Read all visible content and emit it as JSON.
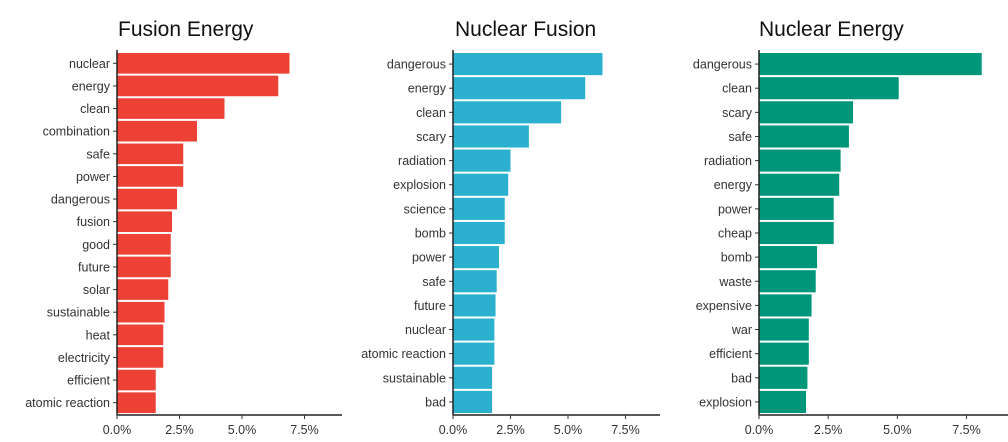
{
  "chart_data": [
    {
      "type": "bar",
      "orientation": "horizontal",
      "title": "Fusion Energy",
      "color": "#ee4136",
      "categories": [
        "nuclear",
        "energy",
        "clean",
        "combination",
        "safe",
        "power",
        "dangerous",
        "fusion",
        "good",
        "future",
        "solar",
        "sustainable",
        "heat",
        "electricity",
        "efficient",
        "atomic reaction"
      ],
      "values": [
        6.9,
        6.45,
        4.3,
        3.2,
        2.65,
        2.65,
        2.4,
        2.2,
        2.15,
        2.15,
        2.05,
        1.9,
        1.85,
        1.85,
        1.55,
        1.55
      ],
      "unit": "%",
      "xlim": [
        0,
        9
      ],
      "xticks": [
        "0.0%",
        "2.5%",
        "5.0%",
        "7.5%"
      ],
      "xtick_values": [
        0,
        2.5,
        5,
        7.5
      ],
      "grid": false
    },
    {
      "type": "bar",
      "orientation": "horizontal",
      "title": "Nuclear Fusion",
      "color": "#2bb1cf",
      "categories": [
        "dangerous",
        "energy",
        "clean",
        "scary",
        "radiation",
        "explosion",
        "science",
        "bomb",
        "power",
        "safe",
        "future",
        "nuclear",
        "atomic reaction",
        "sustainable",
        "bad"
      ],
      "values": [
        6.5,
        5.75,
        4.7,
        3.3,
        2.5,
        2.4,
        2.25,
        2.25,
        2.0,
        1.9,
        1.85,
        1.8,
        1.8,
        1.7,
        1.7
      ],
      "unit": "%",
      "xlim": [
        0,
        9
      ],
      "xticks": [
        "0.0%",
        "2.5%",
        "5.0%",
        "7.5%"
      ],
      "xtick_values": [
        0,
        2.5,
        5,
        7.5
      ],
      "grid": false
    },
    {
      "type": "bar",
      "orientation": "horizontal",
      "title": "Nuclear Energy",
      "color": "#00967a",
      "categories": [
        "dangerous",
        "clean",
        "scary",
        "safe",
        "radiation",
        "energy",
        "power",
        "cheap",
        "bomb",
        "waste",
        "expensive",
        "war",
        "efficient",
        "bad",
        "explosion"
      ],
      "values": [
        8.05,
        5.05,
        3.4,
        3.25,
        2.95,
        2.9,
        2.7,
        2.7,
        2.1,
        2.05,
        1.9,
        1.8,
        1.8,
        1.75,
        1.7
      ],
      "unit": "%",
      "xlim": [
        0,
        9
      ],
      "xticks": [
        "0.0%",
        "2.5%",
        "5.0%",
        "7.5%"
      ],
      "xtick_values": [
        0,
        2.5,
        5,
        7.5
      ],
      "grid": false
    }
  ]
}
